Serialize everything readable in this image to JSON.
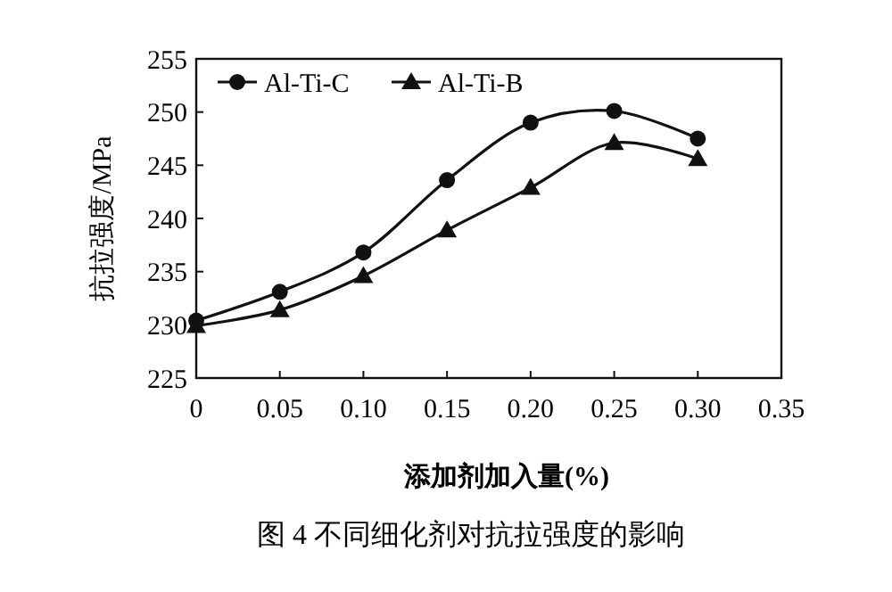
{
  "chart_data": {
    "type": "line",
    "title": "图 4 不同细化剂对抗拉强度的影响",
    "xlabel": "添加剂加入量(%)",
    "ylabel": "抗拉强度/MPa",
    "x": [
      0,
      0.05,
      0.1,
      0.15,
      0.2,
      0.25,
      0.3
    ],
    "series": [
      {
        "name": "Al-Ti-C",
        "color": "#111111",
        "marker": "circle",
        "values": [
          230.4,
          233.1,
          236.8,
          243.6,
          249.0,
          250.1,
          247.5
        ]
      },
      {
        "name": "Al-Ti-B",
        "color": "#111111",
        "marker": "triangle",
        "values": [
          229.9,
          231.4,
          234.6,
          238.9,
          242.9,
          247.1,
          245.6
        ]
      }
    ],
    "xlim": [
      0,
      0.35
    ],
    "xticks": [
      0,
      {
        "value": 0.05,
        "label": "0.05"
      },
      {
        "value": 0.1,
        "label": "0.10"
      },
      {
        "value": 0.15,
        "label": "0.15"
      },
      {
        "value": 0.2,
        "label": "0.20"
      },
      {
        "value": 0.25,
        "label": "0.25"
      },
      {
        "value": 0.3,
        "label": "0.30"
      },
      {
        "value": 0.35,
        "label": "0.35"
      }
    ],
    "ylim": [
      225,
      255
    ],
    "yticks": [
      225,
      230,
      235,
      240,
      245,
      250,
      255
    ],
    "legend": "top left",
    "grid": false
  }
}
